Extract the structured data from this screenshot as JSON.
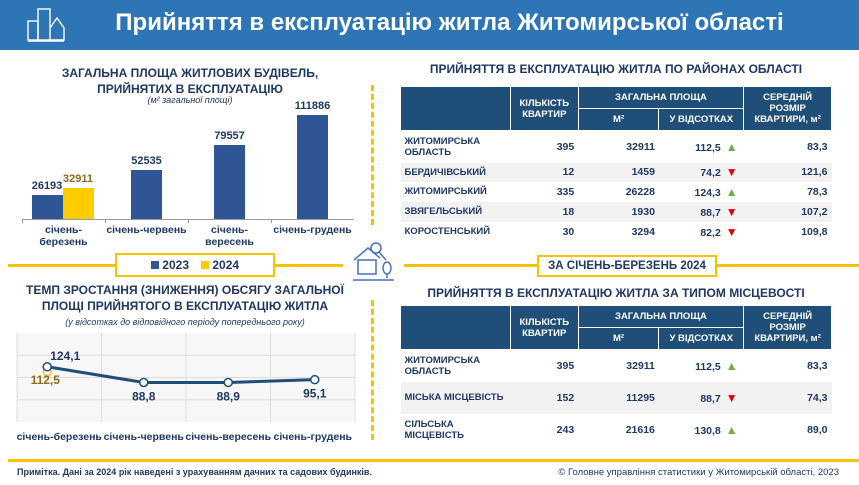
{
  "header": {
    "title": "Прийняття в експлуатацію житла Житомирської області",
    "icon": "buildings-icon"
  },
  "bar_chart": {
    "title1": "ЗАГАЛЬНА ПЛОЩА ЖИТЛОВИХ БУДІВЕЛЬ,",
    "title2": "ПРИЙНЯТИХ В ЕКСПЛУАТАЦІЮ",
    "subtitle": "(м² загальної площі)"
  },
  "legend": {
    "s2023": "2023",
    "s2024": "2024"
  },
  "line_chart": {
    "title1": "ТЕМП ЗРОСТАННЯ (ЗНИЖЕННЯ) ОБСЯГУ ЗАГАЛЬНОЇ",
    "title2": "ПЛОЩІ ПРИЙНЯТОГО В ЕКСПЛУАТАЦІЮ ЖИТЛА",
    "subtitle": "(у відсотках до відповідного періоду попереднього року)"
  },
  "chart_data": [
    {
      "type": "bar",
      "title": "ЗАГАЛЬНА ПЛОЩА ЖИТЛОВИХ БУДІВЕЛЬ, ПРИЙНЯТИХ В ЕКСПЛУАТАЦІЮ",
      "categories": [
        "січень-березень",
        "січень-червень",
        "січень-вересень",
        "січень-грудень"
      ],
      "series": [
        {
          "name": "2023",
          "color": "#2f5597",
          "values": [
            26193,
            52535,
            79557,
            111886
          ]
        },
        {
          "name": "2024",
          "color": "#ffcc00",
          "values": [
            32911,
            null,
            null,
            null
          ]
        }
      ],
      "ylim": [
        0,
        120000
      ]
    },
    {
      "type": "line",
      "title": "ТЕМП ЗРОСТАННЯ (ЗНИЖЕННЯ) ОБСЯГУ ЗАГАЛЬНОЇ ПЛОЩІ ПРИЙНЯТОГО В ЕКСПЛУАТАЦІЮ ЖИТЛА",
      "categories": [
        "січень-березень",
        "січень-червень",
        "січень-вересень",
        "січень-грудень"
      ],
      "series": [
        {
          "name": "2023",
          "color": "#1f4e79",
          "values": [
            124.1,
            88.8,
            88.9,
            95.1
          ],
          "labels": [
            "124,1",
            "88,8",
            "88,9",
            "95,1"
          ]
        },
        {
          "name": "2024",
          "color": "#f5c400",
          "values": [
            112.5,
            null,
            null,
            null
          ],
          "labels": [
            "112,5"
          ]
        }
      ],
      "ylim": [
        0,
        200
      ],
      "grid": true
    }
  ],
  "table1": {
    "title": "ПРИЙНЯТТЯ В ЕКСПЛУАТАЦІЮ ЖИТЛА ПО РАЙОНАХ ОБЛАСТІ",
    "headers": {
      "count": "КІЛЬКІСТЬ КВАРТИР",
      "area": "ЗАГАЛЬНА ПЛОЩА",
      "m2": "М²",
      "pct": "У ВІДСОТКАХ",
      "avg": "СЕРЕДНІЙ РОЗМІР КВАРТИРИ, м²"
    },
    "rows": [
      {
        "name": "ЖИТОМИРСЬКА ОБЛАСТЬ",
        "count": "395",
        "m2": "32911",
        "pct": "112,5",
        "trend": "up",
        "avg": "83,3"
      },
      {
        "name": "БЕРДИЧІВСЬКИЙ",
        "count": "12",
        "m2": "1459",
        "pct": "74,2",
        "trend": "down",
        "avg": "121,6"
      },
      {
        "name": "ЖИТОМИРСЬКИЙ",
        "count": "335",
        "m2": "26228",
        "pct": "124,3",
        "trend": "up",
        "avg": "78,3"
      },
      {
        "name": "ЗВЯГЕЛЬСЬКИЙ",
        "count": "18",
        "m2": "1930",
        "pct": "88,7",
        "trend": "down",
        "avg": "107,2"
      },
      {
        "name": "КОРОСТЕНСЬКИЙ",
        "count": "30",
        "m2": "3294",
        "pct": "82,2",
        "trend": "down",
        "avg": "109,8"
      }
    ]
  },
  "period_banner": "ЗА СІЧЕНЬ-БЕРЕЗЕНЬ 2024",
  "table2": {
    "title": "ПРИЙНЯТТЯ В ЕКСПЛУАТАЦІЮ ЖИТЛА ЗА ТИПОМ МІСЦЕВОСТІ",
    "rows": [
      {
        "name": "ЖИТОМИРСЬКА ОБЛАСТЬ",
        "count": "395",
        "m2": "32911",
        "pct": "112,5",
        "trend": "up",
        "avg": "83,3"
      },
      {
        "name": "МІСЬКА МІСЦЕВІСТЬ",
        "count": "152",
        "m2": "11295",
        "pct": "88,7",
        "trend": "down",
        "avg": "74,3"
      },
      {
        "name": "СІЛЬСЬКА МІСЦЕВІСТЬ",
        "count": "243",
        "m2": "21616",
        "pct": "130,8",
        "trend": "up",
        "avg": "89,0"
      }
    ]
  },
  "footer": {
    "note": "Примітка. Дані за 2024 рік наведені з урахуванням дачних та садових будинків.",
    "copyright": "© Головне управління статистики у Житомирській області, 2023"
  },
  "colors": {
    "header": "#2e75b6",
    "navy": "#1f4e79",
    "yellow": "#f5c400",
    "up": "#70ad47",
    "down": "#e00000"
  }
}
